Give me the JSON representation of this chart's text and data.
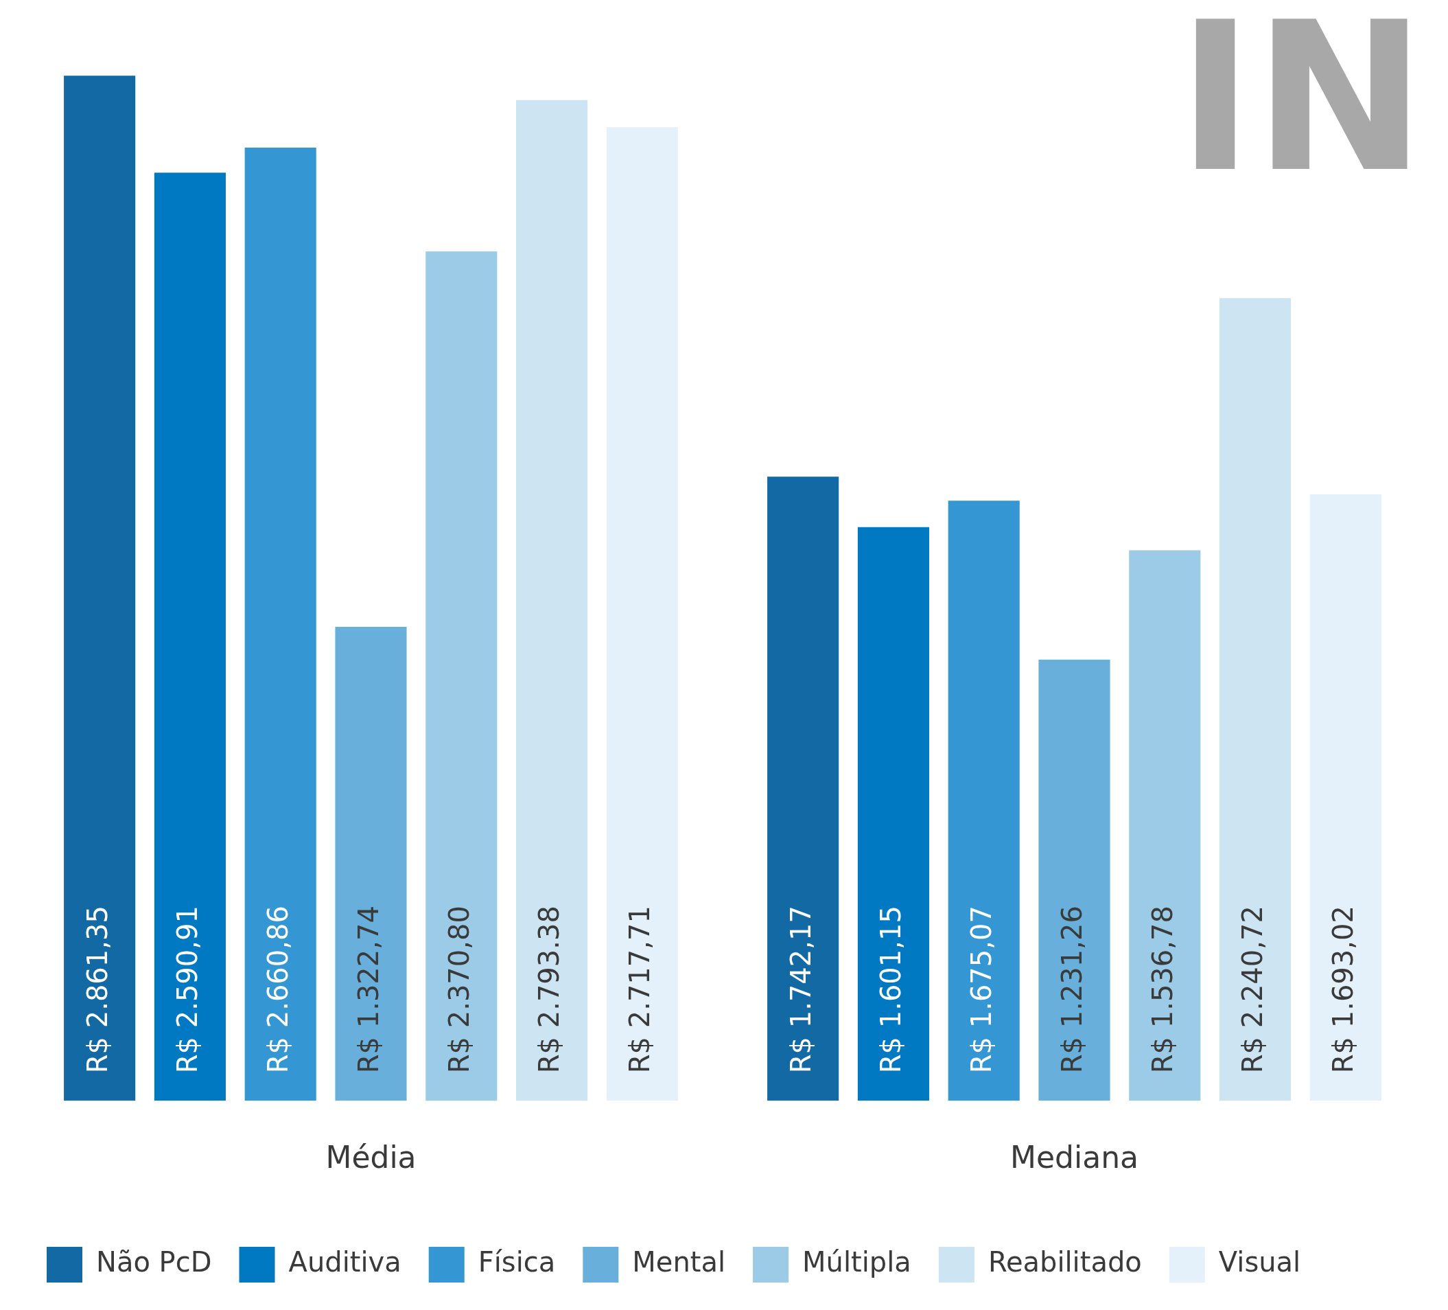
{
  "chart_data": {
    "type": "bar",
    "categories": [
      "Média",
      "Mediana"
    ],
    "series": [
      {
        "name": "Não PcD",
        "color": "#1269a3",
        "values": [
          2861.35,
          1742.17
        ],
        "value_labels": [
          "R$ 2.861,35",
          "R$ 1.742,17"
        ]
      },
      {
        "name": "Auditiva",
        "color": "#0079c2",
        "values": [
          2590.91,
          1601.15
        ],
        "value_labels": [
          "R$ 2.590,91",
          "R$ 1.601,15"
        ]
      },
      {
        "name": "Física",
        "color": "#3496d2",
        "values": [
          2660.86,
          1675.07
        ],
        "value_labels": [
          "R$ 2.660,86",
          "R$ 1.675,07"
        ]
      },
      {
        "name": "Mental",
        "color": "#68b0db",
        "values": [
          1322.74,
          1231.26
        ],
        "value_labels": [
          "R$ 1.322,74",
          "R$ 1.231,26"
        ]
      },
      {
        "name": "Múltipla",
        "color": "#9bcbe7",
        "values": [
          2370.8,
          1536.78
        ],
        "value_labels": [
          "R$ 2.370,80",
          "R$ 1.536,78"
        ]
      },
      {
        "name": "Reabilitado",
        "color": "#cde4f2",
        "values": [
          2793.38,
          2240.72
        ],
        "value_labels": [
          "R$ 2.793.38",
          "R$ 2.240,72"
        ]
      },
      {
        "name": "Visual",
        "color": "#e5f1fa",
        "values": [
          2717.71,
          1693.02
        ],
        "value_labels": [
          "R$ 2.717,71",
          "R$ 1.693,02"
        ]
      }
    ],
    "annotations": [
      "IN"
    ],
    "legend": "bottom",
    "grid": false
  }
}
